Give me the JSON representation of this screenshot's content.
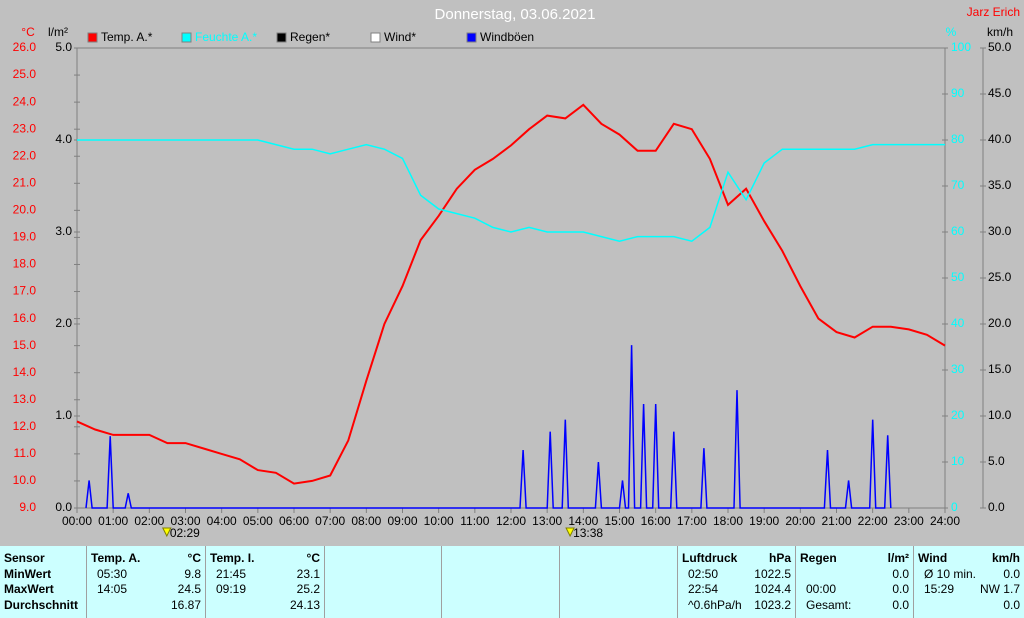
{
  "chart_data": {
    "type": "line",
    "title": "Donnerstag, 03.06.2021",
    "author": "Jarz Erich",
    "axis_labels": {
      "y": "°C",
      "y2": "l/m²",
      "y3": "%",
      "y4": "km/h"
    },
    "ylim": [
      9,
      26
    ],
    "yticks": [
      {
        "value": 9,
        "label": "9.0"
      },
      {
        "value": 10,
        "label": "10.0"
      },
      {
        "value": 11,
        "label": "11.0"
      },
      {
        "value": 12,
        "label": "12.0"
      },
      {
        "value": 13,
        "label": "13.0"
      },
      {
        "value": 14,
        "label": "14.0"
      },
      {
        "value": 15,
        "label": "15.0"
      },
      {
        "value": 16,
        "label": "16.0"
      },
      {
        "value": 17,
        "label": "17.0"
      },
      {
        "value": 18,
        "label": "18.0"
      },
      {
        "value": 19,
        "label": "19.0"
      },
      {
        "value": 20,
        "label": "20.0"
      },
      {
        "value": 21,
        "label": "21.0"
      },
      {
        "value": 22,
        "label": "22.0"
      },
      {
        "value": 23,
        "label": "23.0"
      },
      {
        "value": 24,
        "label": "24.0"
      },
      {
        "value": 25,
        "label": "25.0"
      },
      {
        "value": 26,
        "label": "26.0"
      }
    ],
    "y2lim": [
      0,
      5
    ],
    "y2ticks": [
      {
        "value": 0,
        "label": "0.0"
      },
      {
        "value": 1,
        "label": "1.0"
      },
      {
        "value": 2,
        "label": "2.0"
      },
      {
        "value": 3,
        "label": "3.0"
      },
      {
        "value": 4,
        "label": "4.0"
      },
      {
        "value": 5,
        "label": "5.0"
      }
    ],
    "y3lim": [
      0,
      100
    ],
    "y3ticks": [
      0,
      10,
      20,
      30,
      40,
      50,
      60,
      70,
      80,
      90,
      100
    ],
    "y4lim": [
      0,
      50
    ],
    "y4ticks": [
      {
        "value": 0,
        "label": "0.0"
      },
      {
        "value": 5,
        "label": "5.0"
      },
      {
        "value": 10,
        "label": "10.0"
      },
      {
        "value": 15,
        "label": "15.0"
      },
      {
        "value": 20,
        "label": "20.0"
      },
      {
        "value": 25,
        "label": "25.0"
      },
      {
        "value": 30,
        "label": "30.0"
      },
      {
        "value": 35,
        "label": "35.0"
      },
      {
        "value": 40,
        "label": "40.0"
      },
      {
        "value": 45,
        "label": "45.0"
      },
      {
        "value": 50,
        "label": "50.0"
      }
    ],
    "xticks": [
      "00:00",
      "01:00",
      "02:00",
      "03:00",
      "04:00",
      "05:00",
      "06:00",
      "07:00",
      "08:00",
      "09:00",
      "10:00",
      "11:00",
      "12:00",
      "13:00",
      "14:00",
      "15:00",
      "16:00",
      "17:00",
      "18:00",
      "19:00",
      "20:00",
      "21:00",
      "22:00",
      "23:00",
      "24:00"
    ],
    "annotations": [
      "02:29",
      "13:38"
    ],
    "x": [
      "00:00",
      "00:30",
      "01:00",
      "01:30",
      "02:00",
      "02:30",
      "03:00",
      "03:30",
      "04:00",
      "04:30",
      "05:00",
      "05:30",
      "06:00",
      "06:30",
      "07:00",
      "07:30",
      "08:00",
      "08:30",
      "09:00",
      "09:30",
      "10:00",
      "10:30",
      "11:00",
      "11:30",
      "12:00",
      "12:30",
      "13:00",
      "13:30",
      "14:00",
      "14:30",
      "15:00",
      "15:30",
      "16:00",
      "16:30",
      "17:00",
      "17:30",
      "18:00",
      "18:30",
      "19:00",
      "19:30",
      "20:00",
      "20:30",
      "21:00",
      "21:30",
      "22:00",
      "22:30",
      "23:00",
      "23:30",
      "24:00"
    ],
    "series": [
      {
        "name": "Temp. A.*",
        "color": "#ff0000",
        "axis": "y",
        "values": [
          12.2,
          11.9,
          11.7,
          11.7,
          11.7,
          11.4,
          11.4,
          11.2,
          11.0,
          10.8,
          10.4,
          10.3,
          9.9,
          10.0,
          10.2,
          11.5,
          13.7,
          15.8,
          17.2,
          18.9,
          19.8,
          20.8,
          21.5,
          21.9,
          22.4,
          23.0,
          23.5,
          23.4,
          23.9,
          23.2,
          22.8,
          22.2,
          22.2,
          23.2,
          23.0,
          21.9,
          20.2,
          20.8,
          19.6,
          18.5,
          17.2,
          16.0,
          15.5,
          15.3,
          15.7,
          15.7,
          15.6,
          15.4,
          15.0
        ]
      },
      {
        "name": "Feuchte A.*",
        "color": "#00ffff",
        "axis": "y3",
        "values": [
          80,
          80,
          80,
          80,
          80,
          80,
          80,
          80,
          80,
          80,
          80,
          79,
          78,
          78,
          77,
          78,
          79,
          78,
          76,
          68,
          65,
          64,
          63,
          61,
          60,
          61,
          60,
          60,
          60,
          59,
          58,
          59,
          59,
          59,
          58,
          61,
          73,
          67,
          75,
          78,
          78,
          78,
          78,
          78,
          79,
          79,
          79,
          79,
          79
        ]
      },
      {
        "name": "Regen*",
        "color": "#000000",
        "axis": "y2"
      },
      {
        "name": "Wind*",
        "color": "#ffffff",
        "axis": "y4"
      },
      {
        "name": "Windböen",
        "color": "#0000ff",
        "axis": "y4",
        "x": [
          "00:15",
          "00:20",
          "00:25",
          "00:50",
          "00:55",
          "01:00",
          "01:20",
          "01:25",
          "01:30",
          "12:15",
          "12:20",
          "12:25",
          "13:00",
          "13:05",
          "13:10",
          "13:25",
          "13:30",
          "13:35",
          "14:20",
          "14:25",
          "14:30",
          "15:00",
          "15:05",
          "15:10",
          "15:15",
          "15:20",
          "15:25",
          "15:35",
          "15:40",
          "15:45",
          "15:55",
          "16:00",
          "16:05",
          "16:25",
          "16:30",
          "16:35",
          "17:15",
          "17:20",
          "17:25",
          "18:10",
          "18:15",
          "18:20",
          "20:40",
          "20:45",
          "20:50",
          "21:15",
          "21:20",
          "21:25",
          "21:55",
          "22:00",
          "22:05",
          "22:20",
          "22:25",
          "22:30"
        ],
        "values": [
          0,
          3,
          0,
          0,
          7.8,
          0,
          0,
          1.6,
          0,
          0,
          6.3,
          0,
          0,
          8.3,
          0,
          0,
          9.6,
          0,
          0,
          5,
          0,
          0,
          3,
          0,
          0,
          17.7,
          0,
          0,
          11.3,
          0,
          0,
          11.3,
          0,
          0,
          8.3,
          0,
          0,
          6.5,
          0,
          0,
          12.8,
          0,
          0,
          6.3,
          0,
          0,
          3,
          0,
          0,
          9.6,
          0,
          0,
          7.9,
          0
        ]
      }
    ]
  },
  "stats": {
    "row_labels": [
      "Sensor",
      "MinWert",
      "MaxWert",
      "Durchschnitt"
    ],
    "panels": [
      {
        "name": "Temp. A.",
        "unit": "°C",
        "rows": [
          [
            "05:30",
            "9.8"
          ],
          [
            "14:05",
            "24.5"
          ],
          [
            null,
            "16.87"
          ]
        ]
      },
      {
        "name": "Temp. I.",
        "unit": "°C",
        "rows": [
          [
            "21:45",
            "23.1"
          ],
          [
            "09:19",
            "25.2"
          ],
          [
            null,
            "24.13"
          ]
        ]
      },
      {
        "name": "Luftdruck",
        "unit": "hPa",
        "rows": [
          [
            "02:50",
            "1022.5"
          ],
          [
            "22:54",
            "1024.4"
          ],
          [
            "^0.6hPa/h",
            "1023.2"
          ]
        ]
      },
      {
        "name": "Regen",
        "unit": "l/m²",
        "rows": [
          [
            null,
            "0.0"
          ],
          [
            "00:00",
            "0.0"
          ],
          [
            "Gesamt:",
            "0.0"
          ]
        ]
      },
      {
        "name": "Wind",
        "unit": "km/h",
        "rows": [
          [
            "Ø 10 min.",
            "0.0"
          ],
          [
            "15:29",
            "NW 1.7"
          ],
          [
            null,
            "0.0"
          ]
        ]
      }
    ]
  }
}
